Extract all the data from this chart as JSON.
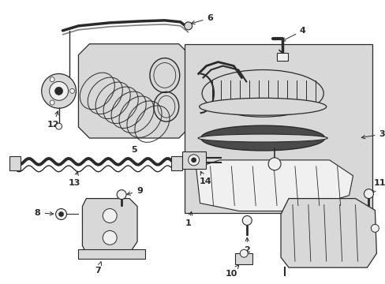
{
  "bg_color": "#ffffff",
  "lc": "#2a2a2a",
  "fc_light": "#f0f0f0",
  "fc_med": "#d8d8d8",
  "fc_dark": "#aaaaaa",
  "figsize": [
    4.89,
    3.6
  ],
  "dpi": 100
}
